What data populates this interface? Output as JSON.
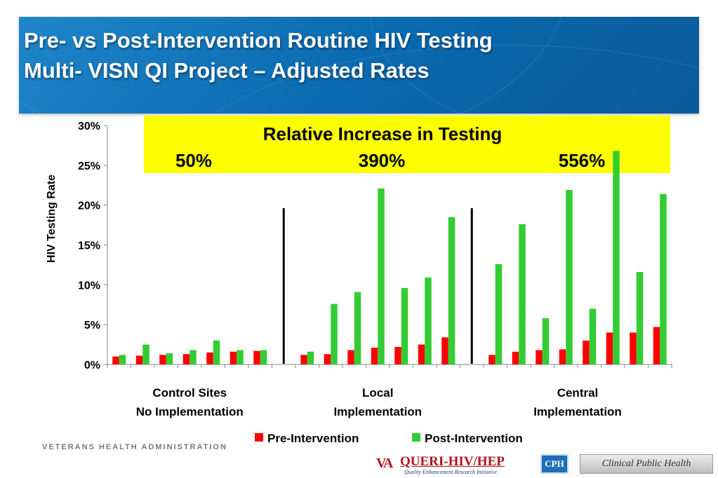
{
  "slide": {
    "title_line1": "Pre- vs Post-Intervention Routine HIV Testing",
    "title_line2": "Multi- VISN QI Project – Adjusted Rates",
    "banner_color": "#0a6ab0"
  },
  "callout": {
    "heading": "Relative Increase in Testing",
    "values": [
      "50%",
      "390%",
      "556%"
    ],
    "background": "#ffff00"
  },
  "chart_data": {
    "type": "bar",
    "ylabel": "HIV Testing Rate",
    "xlabel": "",
    "ylim": [
      0,
      0.3
    ],
    "yticks": [
      "0%",
      "5%",
      "10%",
      "15%",
      "20%",
      "25%",
      "30%"
    ],
    "grid": false,
    "legend_position": "bottom",
    "groups": [
      {
        "label_line1": "Control Sites",
        "label_line2": "No Implementation",
        "pre": [
          0.01,
          0.011,
          0.012,
          0.013,
          0.015,
          0.016,
          0.017
        ],
        "post": [
          0.012,
          0.025,
          0.014,
          0.018,
          0.03,
          0.018,
          0.018
        ]
      },
      {
        "label_line1": "Local",
        "label_line2": "Implementation",
        "pre": [
          0.012,
          0.013,
          0.018,
          0.021,
          0.022,
          0.025,
          0.034
        ],
        "post": [
          0.016,
          0.076,
          0.091,
          0.221,
          0.096,
          0.109,
          0.185
        ]
      },
      {
        "label_line1": "Central",
        "label_line2": "Implementation",
        "pre": [
          0.012,
          0.016,
          0.018,
          0.019,
          0.03,
          0.04,
          0.04,
          0.047
        ],
        "post": [
          0.126,
          0.176,
          0.058,
          0.219,
          0.07,
          0.268,
          0.116,
          0.214
        ]
      }
    ],
    "series": [
      {
        "name": "Pre-Intervention",
        "color": "#ff0000"
      },
      {
        "name": "Post-Intervention",
        "color": "#33cc33"
      }
    ]
  },
  "footer": {
    "agency": "VETERANS HEALTH ADMINISTRATION",
    "queri_mark": "VA",
    "queri_name": "QUERI-HIV/HEP",
    "queri_tagline": "Quality Enhancement Research Initiative",
    "cph_badge": "CPH",
    "cph_name": "Clinical Public Health"
  }
}
